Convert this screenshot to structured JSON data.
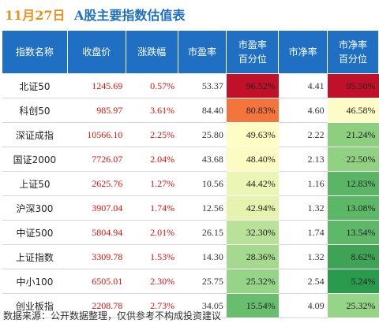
{
  "header": {
    "date": "11月27日",
    "title": "A股主要指数估值表"
  },
  "columns": [
    "指数名称",
    "收盘价",
    "涨跌幅",
    "市盈率",
    "市盈率\n百分位",
    "市净率",
    "市净率\n百分位"
  ],
  "rows": [
    {
      "name": "北证50",
      "close": "1245.69",
      "change": "0.57%",
      "pe": "53.37",
      "pe_pct": "96.52%",
      "pb": "4.41",
      "pb_pct": "95.50%",
      "pe_color": "#c0102a",
      "pb_color": "#c0102a"
    },
    {
      "name": "科创50",
      "close": "985.97",
      "change": "3.61%",
      "pe": "84.40",
      "pe_pct": "80.83%",
      "pb": "4.60",
      "pb_pct": "46.58%",
      "pe_color": "#f4743e",
      "pb_color": "#fefcc6"
    },
    {
      "name": "深证成指",
      "close": "10566.10",
      "change": "2.25%",
      "pe": "25.80",
      "pe_pct": "49.63%",
      "pb": "2.22",
      "pb_pct": "21.24%",
      "pe_color": "#fefec4",
      "pb_color": "#8dcf7e"
    },
    {
      "name": "国证2000",
      "close": "7726.07",
      "change": "2.04%",
      "pe": "43.68",
      "pe_pct": "48.40%",
      "pb": "2.13",
      "pb_pct": "22.50%",
      "pe_color": "#fcfcc2",
      "pb_color": "#90d282"
    },
    {
      "name": "上证50",
      "close": "2625.76",
      "change": "1.27%",
      "pe": "10.56",
      "pe_pct": "44.42%",
      "pb": "1.16",
      "pb_pct": "12.83%",
      "pe_color": "#ecf6b4",
      "pb_color": "#5ab566"
    },
    {
      "name": "沪深300",
      "close": "3907.04",
      "change": "1.74%",
      "pe": "12.56",
      "pe_pct": "42.94%",
      "pb": "1.32",
      "pb_pct": "13.08%",
      "pe_color": "#e6f3ae",
      "pb_color": "#5cb767"
    },
    {
      "name": "中证500",
      "close": "5804.94",
      "change": "2.01%",
      "pe": "26.15",
      "pe_pct": "32.30%",
      "pb": "1.74",
      "pb_pct": "13.54%",
      "pe_color": "#b9e199",
      "pb_color": "#5fb869"
    },
    {
      "name": "上证指数",
      "close": "3309.78",
      "change": "1.53%",
      "pe": "14.30",
      "pe_pct": "28.36%",
      "pb": "1.32",
      "pb_pct": "8.62%",
      "pe_color": "#a4d98f",
      "pb_color": "#3fa356"
    },
    {
      "name": "中小100",
      "close": "6505.01",
      "change": "2.30%",
      "pe": "25.75",
      "pe_pct": "25.32%",
      "pb": "2.54",
      "pb_pct": "5.24%",
      "pe_color": "#96d488",
      "pb_color": "#2a9a4c"
    },
    {
      "name": "创业板指",
      "close": "2208.78",
      "change": "2.73%",
      "pe": "34.05",
      "pe_pct": "15.54%",
      "pb": "4.09",
      "pb_pct": "25.32%",
      "pe_color": "#69bd6e",
      "pb_color": "#96d488"
    }
  ],
  "footer": {
    "source": "数据来源：公开数据整理，仅供参考不构成投资建议"
  }
}
